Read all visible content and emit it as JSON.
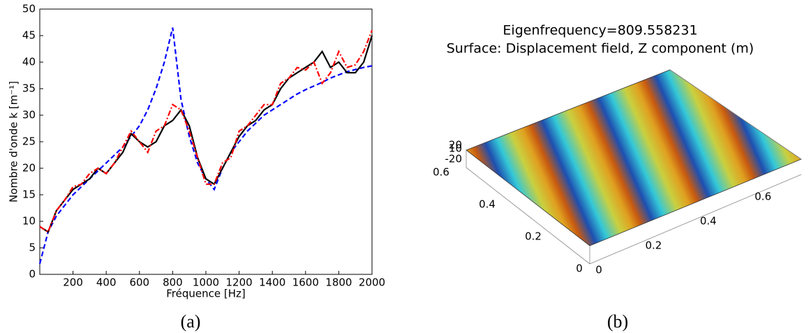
{
  "chart_data": [
    {
      "type": "line",
      "xlabel": "Fréquence [Hz]",
      "ylabel": "Nombre d'onde k [m⁻¹]",
      "caption": "(a)",
      "xlim": [
        0,
        2000
      ],
      "xticks": [
        200,
        400,
        600,
        800,
        1000,
        1200,
        1400,
        1600,
        1800,
        2000
      ],
      "ylim": [
        0,
        50
      ],
      "yticks": [
        0,
        5,
        10,
        15,
        20,
        25,
        30,
        35,
        40,
        45,
        50
      ],
      "x": [
        0,
        50,
        100,
        150,
        200,
        250,
        300,
        350,
        400,
        450,
        500,
        550,
        600,
        650,
        700,
        750,
        800,
        850,
        900,
        950,
        1000,
        1050,
        1100,
        1150,
        1200,
        1250,
        1300,
        1350,
        1400,
        1450,
        1500,
        1550,
        1600,
        1650,
        1700,
        1750,
        1800,
        1850,
        1900,
        1950,
        2000
      ],
      "series": [
        {
          "color": "#0000ff",
          "dash": "dashed",
          "values": [
            2,
            8,
            11,
            13,
            15,
            16.5,
            18,
            19.5,
            21,
            22.5,
            24,
            26,
            28,
            31,
            35,
            40,
            46.5,
            33,
            26,
            21,
            18,
            16,
            20,
            23,
            25,
            27,
            28.5,
            30,
            31,
            32,
            33,
            34,
            34.8,
            35.5,
            36.2,
            37,
            37.6,
            38.2,
            38.6,
            39,
            39.3
          ]
        },
        {
          "color": "#000000",
          "dash": "solid",
          "values": [
            9,
            8,
            12,
            14,
            16,
            17,
            18,
            20,
            19,
            21,
            23,
            26.5,
            25,
            24,
            25,
            28,
            29,
            31,
            28,
            22,
            18,
            17,
            20,
            23,
            26,
            28,
            29,
            31,
            32,
            35,
            37,
            38,
            39,
            40,
            42,
            39,
            40,
            38,
            38,
            40,
            45
          ]
        },
        {
          "color": "#ff0000",
          "dash": "dashdot",
          "values": [
            9,
            8,
            12,
            14,
            16.5,
            17,
            19,
            20,
            19,
            21,
            24,
            27,
            25,
            23,
            27,
            28,
            32,
            31,
            27,
            22,
            17,
            17,
            21,
            22,
            27,
            28,
            30,
            32,
            32,
            36,
            37,
            39,
            38.5,
            40,
            36,
            38,
            42,
            39,
            39.5,
            42,
            46
          ]
        }
      ]
    },
    {
      "type": "surface",
      "title": [
        "Eigenfrequency=809.558231",
        "Surface: Displacement field, Z component (m)"
      ],
      "caption": "(b)",
      "xticks": [
        0,
        0.2,
        0.4,
        0.6
      ],
      "yticks": [
        0,
        0.2,
        0.4,
        0.6
      ],
      "zticks": [
        20,
        -20,
        10
      ]
    }
  ]
}
